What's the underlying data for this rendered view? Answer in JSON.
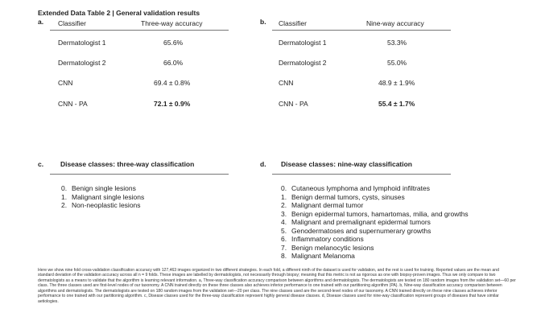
{
  "title": "Extended Data Table 2 | General validation results",
  "table_a": {
    "label": "a.",
    "headers": [
      "Classifier",
      "Three-way accuracy"
    ],
    "rows": [
      {
        "classifier": "Dermatologist 1",
        "accuracy": "65.6%",
        "bold": false
      },
      {
        "classifier": "Dermatologist 2",
        "accuracy": "66.0%",
        "bold": false
      },
      {
        "classifier": "CNN",
        "accuracy": "69.4 ± 0.8%",
        "bold": false
      },
      {
        "classifier": "CNN - PA",
        "accuracy": "72.1 ± 0.9%",
        "bold": true
      }
    ]
  },
  "table_b": {
    "label": "b.",
    "headers": [
      "Classifier",
      "Nine-way accuracy"
    ],
    "rows": [
      {
        "classifier": "Dermatologist 1",
        "accuracy": "53.3%",
        "bold": false
      },
      {
        "classifier": "Dermatologist 2",
        "accuracy": "55.0%",
        "bold": false
      },
      {
        "classifier": "CNN",
        "accuracy": "48.9 ± 1.9%",
        "bold": false
      },
      {
        "classifier": "CNN - PA",
        "accuracy": "55.4 ± 1.7%",
        "bold": true
      }
    ]
  },
  "section_c": {
    "label": "c.",
    "title": "Disease classes: three-way classification",
    "items": [
      {
        "num": "0.",
        "text": "Benign single lesions"
      },
      {
        "num": "1.",
        "text": "Malignant single lesions"
      },
      {
        "num": "2.",
        "text": "Non-neoplastic lesions"
      }
    ]
  },
  "section_d": {
    "label": "d.",
    "title": "Disease classes: nine-way classification",
    "items": [
      {
        "num": "0.",
        "text": "Cutaneous lymphoma and lymphoid infiltrates"
      },
      {
        "num": "1.",
        "text": "Benign dermal tumors, cysts, sinuses"
      },
      {
        "num": "2.",
        "text": "Malignant dermal tumor"
      },
      {
        "num": "3.",
        "text": "Benign epidermal tumors, hamartomas, milia, and growths"
      },
      {
        "num": "4.",
        "text": "Malignant and premalignant epidermal tumors"
      },
      {
        "num": "5.",
        "text": "Genodermatoses and supernumerary growths"
      },
      {
        "num": "6.",
        "text": "Inflammatory conditions"
      },
      {
        "num": "7.",
        "text": "Benign melanocytic lesions"
      },
      {
        "num": "8.",
        "text": "Malignant Melanoma"
      }
    ]
  },
  "caption": "Here we show nine fold cross-validation classification accuracy with 127,463 images organized in two different strategies. In each fold, a different ninth of the dataset is used for validation, and the rest is used for training. Reported values are the mean and standard deviation of the validation accuracy across all n = 9 folds. These images are labelled by dermatologists, not necessarily through biopsy; meaning that this metric is not as rigorous as one with biopsy-proven images. Thus we only compare to two dermatologists as a means to validate that the algorithm is learning relevant information. a, Three-way classification accuracy comparison between algorithms and dermatologists. The dermatologists are tested on 180 random images from the validation set—60 per class. The three classes used are first-level nodes of our taxonomy. A CNN trained directly on these three classes also achieves inferior performance to one trained with our partitioning algorithm (PA). b, Nine-way classification accuracy comparison between algorithms and dermatologists. The dermatologists are tested on 180 random images from the validation set—20 per class. The nine classes used are the second-level nodes of our taxonomy. A CNN trained directly on these nine classes achieves inferior performance to one trained with our partitioning algorithm. c, Disease classes used for the three-way classification represent highly general disease classes. d, Disease classes used for nine-way classification represent groups of diseases that have similar aetiologies."
}
